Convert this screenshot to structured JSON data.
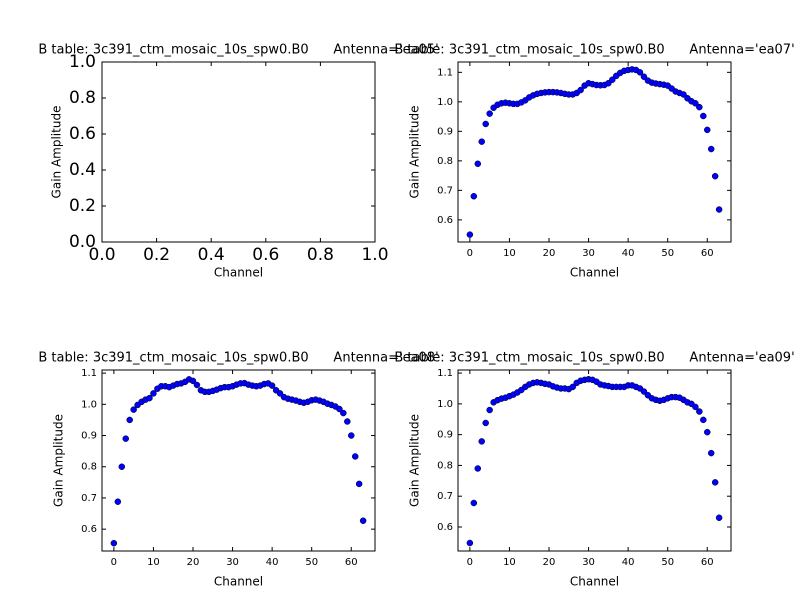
{
  "chart_data": [
    {
      "type": "scatter",
      "title": "B table: 3c391_ctm_mosaic_10s_spw0.B0      Antenna='ea05'",
      "xlabel": "Channel",
      "ylabel": "Gain Amplitude",
      "xlim": [
        0,
        1
      ],
      "ylim": [
        0,
        1
      ],
      "xticks": [
        {
          "value": 0,
          "label": "0.0"
        },
        0.2,
        0.4,
        0.6,
        0.8,
        {
          "value": 1,
          "label": "1.0"
        }
      ],
      "yticks": [
        {
          "value": 0,
          "label": "0.0"
        },
        0.2,
        0.4,
        0.6,
        0.8,
        {
          "value": 1,
          "label": "1.0"
        }
      ],
      "x": [],
      "series": []
    },
    {
      "type": "scatter",
      "title": "B table: 3c391_ctm_mosaic_10s_spw0.B0      Antenna='ea07'",
      "xlabel": "Channel",
      "ylabel": "Gain Amplitude",
      "xlim": [
        -3,
        66
      ],
      "ylim": [
        0.525,
        1.135
      ],
      "xticks": [
        0,
        10,
        20,
        30,
        40,
        50,
        60
      ],
      "yticks": [
        0.6,
        0.7,
        0.8,
        0.9,
        {
          "value": 1,
          "label": "1.0"
        },
        1.1
      ],
      "x": [
        0,
        1,
        2,
        3,
        4,
        5,
        6,
        7,
        8,
        9,
        10,
        11,
        12,
        13,
        14,
        15,
        16,
        17,
        18,
        19,
        20,
        21,
        22,
        23,
        24,
        25,
        26,
        27,
        28,
        29,
        30,
        31,
        32,
        33,
        34,
        35,
        36,
        37,
        38,
        39,
        40,
        41,
        42,
        43,
        44,
        45,
        46,
        47,
        48,
        49,
        50,
        51,
        52,
        53,
        54,
        55,
        56,
        57,
        58,
        59,
        60,
        61,
        62,
        63
      ],
      "series": [
        {
          "color": "#0000ff",
          "values": [
            0.55,
            0.68,
            0.79,
            0.865,
            0.925,
            0.96,
            0.98,
            0.99,
            0.995,
            0.997,
            0.995,
            0.993,
            0.993,
            0.998,
            1.005,
            1.015,
            1.022,
            1.027,
            1.03,
            1.032,
            1.033,
            1.033,
            1.032,
            1.03,
            1.027,
            1.025,
            1.025,
            1.03,
            1.04,
            1.055,
            1.063,
            1.06,
            1.057,
            1.056,
            1.057,
            1.063,
            1.075,
            1.088,
            1.098,
            1.105,
            1.108,
            1.11,
            1.108,
            1.1,
            1.085,
            1.072,
            1.065,
            1.062,
            1.06,
            1.058,
            1.055,
            1.045,
            1.035,
            1.03,
            1.025,
            1.012,
            1.002,
            0.995,
            0.982,
            0.952,
            0.905,
            0.84,
            0.748,
            0.635
          ]
        }
      ]
    },
    {
      "type": "scatter",
      "title": "B table: 3c391_ctm_mosaic_10s_spw0.B0      Antenna='ea08'",
      "xlabel": "Channel",
      "ylabel": "Gain Amplitude",
      "xlim": [
        -3,
        66
      ],
      "ylim": [
        0.53,
        1.11
      ],
      "xticks": [
        0,
        10,
        20,
        30,
        40,
        50,
        60
      ],
      "yticks": [
        0.6,
        0.7,
        0.8,
        0.9,
        {
          "value": 1,
          "label": "1.0"
        },
        1.1
      ],
      "x": [
        0,
        1,
        2,
        3,
        4,
        5,
        6,
        7,
        8,
        9,
        10,
        11,
        12,
        13,
        14,
        15,
        16,
        17,
        18,
        19,
        20,
        21,
        22,
        23,
        24,
        25,
        26,
        27,
        28,
        29,
        30,
        31,
        32,
        33,
        34,
        35,
        36,
        37,
        38,
        39,
        40,
        41,
        42,
        43,
        44,
        45,
        46,
        47,
        48,
        49,
        50,
        51,
        52,
        53,
        54,
        55,
        56,
        57,
        58,
        59,
        60,
        61,
        62,
        63
      ],
      "series": [
        {
          "color": "#0000ff",
          "values": [
            0.555,
            0.688,
            0.8,
            0.89,
            0.95,
            0.983,
            0.998,
            1.008,
            1.015,
            1.02,
            1.035,
            1.05,
            1.058,
            1.058,
            1.055,
            1.06,
            1.065,
            1.067,
            1.072,
            1.08,
            1.075,
            1.062,
            1.045,
            1.04,
            1.04,
            1.043,
            1.047,
            1.052,
            1.055,
            1.055,
            1.058,
            1.063,
            1.067,
            1.068,
            1.063,
            1.06,
            1.058,
            1.06,
            1.065,
            1.067,
            1.06,
            1.045,
            1.035,
            1.023,
            1.018,
            1.015,
            1.012,
            1.008,
            1.005,
            1.008,
            1.013,
            1.015,
            1.012,
            1.008,
            1.002,
            0.998,
            0.993,
            0.985,
            0.972,
            0.945,
            0.9,
            0.833,
            0.745,
            0.627
          ]
        }
      ]
    },
    {
      "type": "scatter",
      "title": "B table: 3c391_ctm_mosaic_10s_spw0.B0      Antenna='ea09'",
      "xlabel": "Channel",
      "ylabel": "Gain Amplitude",
      "xlim": [
        -3,
        66
      ],
      "ylim": [
        0.522,
        1.11
      ],
      "xticks": [
        0,
        10,
        20,
        30,
        40,
        50,
        60
      ],
      "yticks": [
        0.6,
        0.7,
        0.8,
        0.9,
        {
          "value": 1,
          "label": "1.0"
        },
        1.1
      ],
      "x": [
        0,
        1,
        2,
        3,
        4,
        5,
        6,
        7,
        8,
        9,
        10,
        11,
        12,
        13,
        14,
        15,
        16,
        17,
        18,
        19,
        20,
        21,
        22,
        23,
        24,
        25,
        26,
        27,
        28,
        29,
        30,
        31,
        32,
        33,
        34,
        35,
        36,
        37,
        38,
        39,
        40,
        41,
        42,
        43,
        44,
        45,
        46,
        47,
        48,
        49,
        50,
        51,
        52,
        53,
        54,
        55,
        56,
        57,
        58,
        59,
        60,
        61,
        62,
        63
      ],
      "series": [
        {
          "color": "#0000ff",
          "values": [
            0.548,
            0.678,
            0.79,
            0.878,
            0.938,
            0.98,
            1.005,
            1.012,
            1.017,
            1.02,
            1.025,
            1.03,
            1.037,
            1.045,
            1.055,
            1.063,
            1.068,
            1.07,
            1.068,
            1.065,
            1.063,
            1.057,
            1.053,
            1.05,
            1.05,
            1.048,
            1.055,
            1.068,
            1.075,
            1.078,
            1.08,
            1.078,
            1.072,
            1.063,
            1.06,
            1.058,
            1.055,
            1.055,
            1.055,
            1.055,
            1.06,
            1.06,
            1.055,
            1.05,
            1.04,
            1.028,
            1.018,
            1.013,
            1.01,
            1.013,
            1.018,
            1.022,
            1.022,
            1.02,
            1.013,
            1.005,
            1.0,
            0.99,
            0.975,
            0.948,
            0.908,
            0.84,
            0.745,
            0.63
          ]
        }
      ]
    }
  ]
}
